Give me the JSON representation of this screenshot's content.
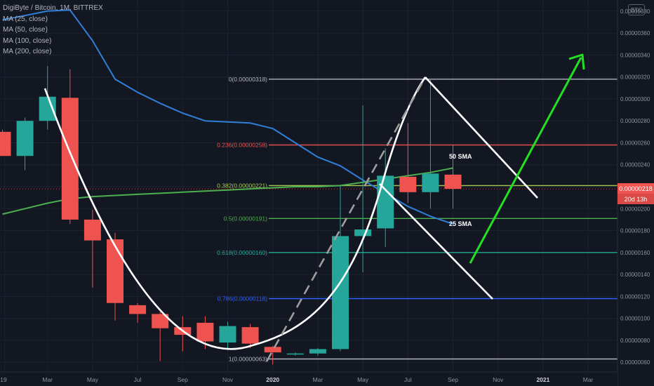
{
  "header": {
    "symbol_line": "DigiByte / Bitcoin, 1M, BITTREX",
    "indicators": [
      "MA (25, close)",
      "MA (50, close)",
      "MA (100, close)",
      "MA (200, close)"
    ],
    "currency_button": "BTC"
  },
  "price_badge": {
    "value": "0.00000218",
    "countdown": "20d 13h"
  },
  "colors": {
    "background": "#131722",
    "bull": "#26a69a",
    "bear": "#ef5350",
    "ma25": "#2f7fd8",
    "ma50": "#4caf50",
    "curve": "#ffffff",
    "arrow": "#22e022",
    "dash": "#9e9e9e",
    "badge": "#ef5350"
  },
  "chart_data": {
    "type": "candlestick",
    "title": "DigiByte / Bitcoin, 1M, BITTREX",
    "y_axis": {
      "min": 5.5e-07,
      "max": 3.85e-06,
      "ticks": [
        "0.00000380",
        "0.00000360",
        "0.00000340",
        "0.00000320",
        "0.00000300",
        "0.00000280",
        "0.00000260",
        "0.00000240",
        "0.00000220",
        "0.00000200",
        "0.00000180",
        "0.00000160",
        "0.00000140",
        "0.00000120",
        "0.00000100",
        "0.00000080",
        "0.00000060"
      ]
    },
    "x_axis": {
      "ticks": [
        "19",
        "Mar",
        "May",
        "Jul",
        "Sep",
        "Nov",
        "2020",
        "Mar",
        "May",
        "Jul",
        "Sep",
        "Nov",
        "2021",
        "Mar"
      ]
    },
    "candles": [
      {
        "date": "2019-01",
        "o": 2.7e-06,
        "h": 2.72e-06,
        "l": 2.48e-06,
        "c": 2.48e-06
      },
      {
        "date": "2019-02",
        "o": 2.48e-06,
        "h": 2.83e-06,
        "l": 2.35e-06,
        "c": 2.8e-06
      },
      {
        "date": "2019-03",
        "o": 2.8e-06,
        "h": 3.3e-06,
        "l": 2.72e-06,
        "c": 3.02e-06
      },
      {
        "date": "2019-04",
        "o": 3.01e-06,
        "h": 3.27e-06,
        "l": 1.86e-06,
        "c": 1.9e-06
      },
      {
        "date": "2019-05",
        "o": 1.9e-06,
        "h": 1.99e-06,
        "l": 1.28e-06,
        "c": 1.71e-06
      },
      {
        "date": "2019-06",
        "o": 1.72e-06,
        "h": 1.78e-06,
        "l": 9.8e-07,
        "c": 1.14e-06
      },
      {
        "date": "2019-07",
        "o": 1.12e-06,
        "h": 1.14e-06,
        "l": 9.6e-07,
        "c": 1.04e-06
      },
      {
        "date": "2019-08",
        "o": 1.04e-06,
        "h": 1.06e-06,
        "l": 6.1e-07,
        "c": 9.1e-07
      },
      {
        "date": "2019-09",
        "o": 9.2e-07,
        "h": 1.02e-06,
        "l": 7e-07,
        "c": 8.5e-07
      },
      {
        "date": "2019-10",
        "o": 9.6e-07,
        "h": 1.02e-06,
        "l": 7.2e-07,
        "c": 7.9e-07
      },
      {
        "date": "2019-11",
        "o": 7.8e-07,
        "h": 9.7e-07,
        "l": 7.1e-07,
        "c": 9.3e-07
      },
      {
        "date": "2019-12",
        "o": 9.2e-07,
        "h": 9.5e-07,
        "l": 7.3e-07,
        "c": 7.7e-07
      },
      {
        "date": "2020-01",
        "o": 7.4e-07,
        "h": 7.5e-07,
        "l": 5.8e-07,
        "c": 6.9e-07
      },
      {
        "date": "2020-02",
        "o": 6.8e-07,
        "h": 6.9e-07,
        "l": 6.6e-07,
        "c": 6.8e-07
      },
      {
        "date": "2020-03",
        "o": 6.8e-07,
        "h": 7.3e-07,
        "l": 6.6e-07,
        "c": 7.2e-07
      },
      {
        "date": "2020-04",
        "o": 7.2e-07,
        "h": 2.21e-06,
        "l": 7e-07,
        "c": 1.75e-06
      },
      {
        "date": "2020-05",
        "o": 1.75e-06,
        "h": 2.94e-06,
        "l": 1.42e-06,
        "c": 1.81e-06
      },
      {
        "date": "2020-06",
        "o": 1.82e-06,
        "h": 2.55e-06,
        "l": 1.65e-06,
        "c": 2.3e-06
      },
      {
        "date": "2020-07",
        "o": 2.29e-06,
        "h": 2.78e-06,
        "l": 2.05e-06,
        "c": 2.15e-06
      },
      {
        "date": "2020-08",
        "o": 2.15e-06,
        "h": 3.18e-06,
        "l": 2e-06,
        "c": 2.32e-06
      },
      {
        "date": "2020-09",
        "o": 2.31e-06,
        "h": 2.58e-06,
        "l": 2e-06,
        "c": 2.18e-06
      }
    ],
    "series": [
      {
        "name": "MA (25, close)",
        "values": [
          3.72e-06,
          3.76e-06,
          3.8e-06,
          3.81e-06,
          3.53e-06,
          3.18e-06,
          3.06e-06,
          2.96e-06,
          2.87e-06,
          2.8e-06,
          2.79e-06,
          2.78e-06,
          2.73e-06,
          2.6e-06,
          2.47e-06,
          2.39e-06,
          2.26e-06,
          2.14e-06,
          2.02e-06,
          1.93e-06,
          1.86e-06
        ]
      },
      {
        "name": "MA (50, close)",
        "values": [
          1.95e-06,
          2e-06,
          2.05e-06,
          2.09e-06,
          2.11e-06,
          2.12e-06,
          2.13e-06,
          2.14e-06,
          2.15e-06,
          2.16e-06,
          2.17e-06,
          2.18e-06,
          2.19e-06,
          2.2e-06,
          2.2e-06,
          2.21e-06,
          2.24e-06,
          2.27e-06,
          2.3e-06,
          2.33e-06,
          2.37e-06
        ]
      }
    ],
    "fibonacci": [
      {
        "label": "0(0.00000318)",
        "value": 3.18e-06,
        "color": "#b2b5be"
      },
      {
        "label": "0.236(0.00000258)",
        "value": 2.58e-06,
        "color": "#ef5350"
      },
      {
        "label": "0.382(0.00000221)",
        "value": 2.21e-06,
        "color": "#a6c84c"
      },
      {
        "label": "0.5(0.00000191)",
        "value": 1.91e-06,
        "color": "#4caf50"
      },
      {
        "label": "0.618(0.00000160)",
        "value": 1.6e-06,
        "color": "#22ab94"
      },
      {
        "label": "0.786(0.00000118)",
        "value": 1.18e-06,
        "color": "#2962ff"
      },
      {
        "label": "1(0.00000063)",
        "value": 6.3e-07,
        "color": "#b2b5be"
      }
    ],
    "annotations": [
      {
        "label": "50 SMA",
        "date": "2020-09",
        "value": 2.39e-06
      },
      {
        "label": "25 SMA",
        "date": "2020-09",
        "value": 1.84e-06
      }
    ]
  }
}
